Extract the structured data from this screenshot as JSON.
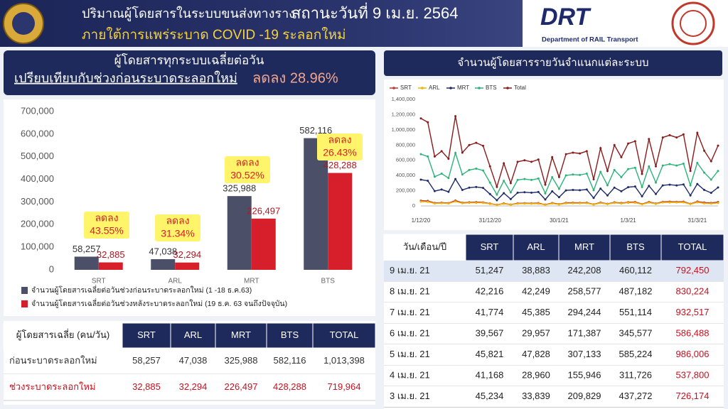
{
  "header": {
    "title": "ปริมาณผู้โดยสารในระบบขนส่งทางราง",
    "status": "สถานะวันที่ 9 เม.ย. 2564",
    "subtitle": "ภายใต้การแพร่ระบาด COVID -19 ระลอกใหม่",
    "logo_text": "DRT",
    "logo_caption": "Department of RAIL Transport"
  },
  "summary_header": {
    "line1": "ผู้โดยสารทุกระบบเฉลี่ยต่อวัน",
    "line2": "เปรียบเทียบกับช่วงก่อนระบาดระลอกใหม่",
    "change": "ลดลง 28.96%"
  },
  "chart_data": [
    {
      "type": "bar",
      "categories": [
        "SRT",
        "ARL",
        "MRT",
        "BTS"
      ],
      "series": [
        {
          "name": "จำนวนผู้โดยสารเฉลี่ยต่อวันช่วงก่อนระบาดระลอกใหม่ (1 -18 ธ.ค.63)",
          "color": "#4b5068",
          "values": [
            58257,
            47038,
            325988,
            582116
          ],
          "value_labels": [
            "58,257",
            "47,038",
            "325,988",
            "582,116"
          ]
        },
        {
          "name": "จำนวนผู้โดยสารเฉลี่ยต่อวันช่วงหลังระบาดระลอกใหม่ (19 ธ.ค. 63 จนถึงปัจจุบัน)",
          "color": "#d71f2c",
          "values": [
            32885,
            32294,
            226497,
            428288
          ],
          "value_labels": [
            "32,885",
            "32,294",
            "226,497",
            "428,288"
          ]
        }
      ],
      "annotations": [
        {
          "label": "ลดลง",
          "text": "43.55%"
        },
        {
          "label": "ลดลง",
          "text": "31.34%"
        },
        {
          "label": "ลดลง",
          "text": "30.52%"
        },
        {
          "label": "ลดลง",
          "text": "26.43%"
        }
      ],
      "ylim": [
        0,
        700000
      ],
      "yticks": [
        0,
        {
          "value": 100000,
          "label": "100,000"
        },
        {
          "value": 200000,
          "label": "200,000"
        },
        {
          "value": 300000,
          "label": "300,000"
        },
        {
          "value": 400000,
          "label": "400,000"
        },
        {
          "value": 500000,
          "label": "500,000"
        },
        {
          "value": 600000,
          "label": "600,000"
        },
        {
          "value": 700000,
          "label": "700,000"
        }
      ],
      "grid": false
    },
    {
      "type": "line",
      "title": "จำนวนผู้โดยสารรายวันจำแนกแต่ละระบบ",
      "x": [
        0,
        3,
        6,
        9,
        12,
        15,
        18,
        21,
        24,
        27,
        30,
        33,
        36,
        39,
        42,
        45,
        48,
        51,
        54,
        57,
        60,
        63,
        66,
        69,
        72,
        75,
        78,
        81,
        84,
        87,
        90,
        93,
        96,
        99,
        102,
        105,
        108,
        111,
        114,
        117,
        120,
        123,
        126,
        129
      ],
      "series": [
        {
          "name": "SRT",
          "color": "#c0392b",
          "values": [
            69000,
            66000,
            39000,
            43000,
            37000,
            71000,
            42000,
            48000,
            50000,
            47000,
            31000,
            15000,
            34000,
            18000,
            35000,
            36000,
            35000,
            37000,
            17000,
            38000,
            23000,
            41000,
            42000,
            41000,
            43000,
            21000,
            46000,
            28000,
            48000,
            38000,
            49000,
            51000,
            25000,
            53000,
            31000,
            54000,
            56000,
            54000,
            56000,
            28000,
            58000,
            45234,
            39567,
            51247
          ]
        },
        {
          "name": "ARL",
          "color": "#f0b400",
          "values": [
            56000,
            54000,
            32000,
            36000,
            31000,
            59000,
            35000,
            40000,
            41000,
            40000,
            26000,
            12000,
            28000,
            15000,
            29000,
            30000,
            29000,
            30000,
            14000,
            32000,
            19000,
            34000,
            35000,
            35000,
            36000,
            17000,
            38000,
            23000,
            40000,
            32000,
            41000,
            42000,
            21000,
            44000,
            26000,
            45000,
            46000,
            45000,
            47000,
            23000,
            48000,
            33839,
            29957,
            38883
          ]
        },
        {
          "name": "MRT",
          "color": "#1f2a6b",
          "values": [
            345000,
            330000,
            195000,
            216000,
            186000,
            354000,
            210000,
            240000,
            249000,
            237000,
            156000,
            75000,
            168000,
            90000,
            174000,
            180000,
            174000,
            183000,
            84000,
            192000,
            114000,
            204000,
            210000,
            207000,
            216000,
            105000,
            228000,
            138000,
            240000,
            192000,
            246000,
            255000,
            126000,
            264000,
            156000,
            270000,
            279000,
            270000,
            282000,
            138000,
            288000,
            209829,
            171387,
            242208
          ]
        },
        {
          "name": "BTS",
          "color": "#2db37a",
          "values": [
            680000,
            650000,
            384000,
            425000,
            366000,
            696000,
            413000,
            472000,
            490000,
            466000,
            307000,
            148000,
            330000,
            177000,
            342000,
            354000,
            342000,
            360000,
            165000,
            378000,
            224000,
            401000,
            413000,
            407000,
            425000,
            207000,
            448000,
            271000,
            472000,
            378000,
            484000,
            502000,
            248000,
            519000,
            307000,
            531000,
            549000,
            531000,
            555000,
            271000,
            566000,
            437272,
            345577,
            460112
          ]
        },
        {
          "name": "Total",
          "color": "#8b1a1a",
          "values": [
            1150000,
            1100000,
            650000,
            720000,
            620000,
            1180000,
            700000,
            800000,
            830000,
            790000,
            520000,
            250000,
            560000,
            300000,
            580000,
            600000,
            580000,
            610000,
            280000,
            640000,
            380000,
            680000,
            700000,
            690000,
            720000,
            350000,
            760000,
            460000,
            800000,
            640000,
            820000,
            850000,
            420000,
            880000,
            520000,
            900000,
            930000,
            900000,
            940000,
            460000,
            960000,
            726174,
            586488,
            792450
          ]
        }
      ],
      "xlim": [
        0,
        129
      ],
      "xticks": [
        {
          "value": 0,
          "label": "1/12/20"
        },
        {
          "value": 30,
          "label": "31/12/20"
        },
        {
          "value": 60,
          "label": "30/1/21"
        },
        {
          "value": 90,
          "label": "1/3/21"
        },
        {
          "value": 120,
          "label": "31/3/21"
        }
      ],
      "ylim": [
        0,
        1400000
      ],
      "yticks": [
        0,
        {
          "value": 200000,
          "label": "200,000"
        },
        {
          "value": 400000,
          "label": "400,000"
        },
        {
          "value": 600000,
          "label": "600,000"
        },
        {
          "value": 800000,
          "label": "800,000"
        },
        {
          "value": 1000000,
          "label": "1,000,000"
        },
        {
          "value": 1200000,
          "label": "1,200,000"
        },
        {
          "value": 1400000,
          "label": "1,400,000"
        }
      ],
      "grid": false
    }
  ],
  "summary_table": {
    "header": [
      "ผู้โดยสารเฉลี่ย (คน/วัน)",
      "SRT",
      "ARL",
      "MRT",
      "BTS",
      "TOTAL"
    ],
    "rows": [
      [
        "ก่อนระบาดระลอกใหม่",
        "58,257",
        "47,038",
        "325,988",
        "582,116",
        "1,013,398"
      ],
      [
        "ช่วงระบาดระลอกใหม่",
        "32,885",
        "32,294",
        "226,497",
        "428,288",
        "719,964"
      ]
    ]
  },
  "daily_table": {
    "header": [
      "วัน/เดือน/ปี",
      "SRT",
      "ARL",
      "MRT",
      "BTS",
      "TOTAL"
    ],
    "rows": [
      [
        "9 เม.ย. 21",
        "51,247",
        "38,883",
        "242,208",
        "460,112",
        "792,450"
      ],
      [
        "8 เม.ย. 21",
        "42,216",
        "42,249",
        "258,577",
        "487,182",
        "830,224"
      ],
      [
        "7 เม.ย. 21",
        "41,774",
        "45,385",
        "294,244",
        "551,114",
        "932,517"
      ],
      [
        "6 เม.ย. 21",
        "39,567",
        "29,957",
        "171,387",
        "345,577",
        "586,488"
      ],
      [
        "5 เม.ย. 21",
        "45,821",
        "47,828",
        "307,133",
        "585,224",
        "986,006"
      ],
      [
        "4 เม.ย. 21",
        "41,168",
        "28,960",
        "155,946",
        "311,726",
        "537,800"
      ],
      [
        "3 เม.ย. 21",
        "45,234",
        "33,839",
        "209,829",
        "437,272",
        "726,174"
      ]
    ]
  }
}
